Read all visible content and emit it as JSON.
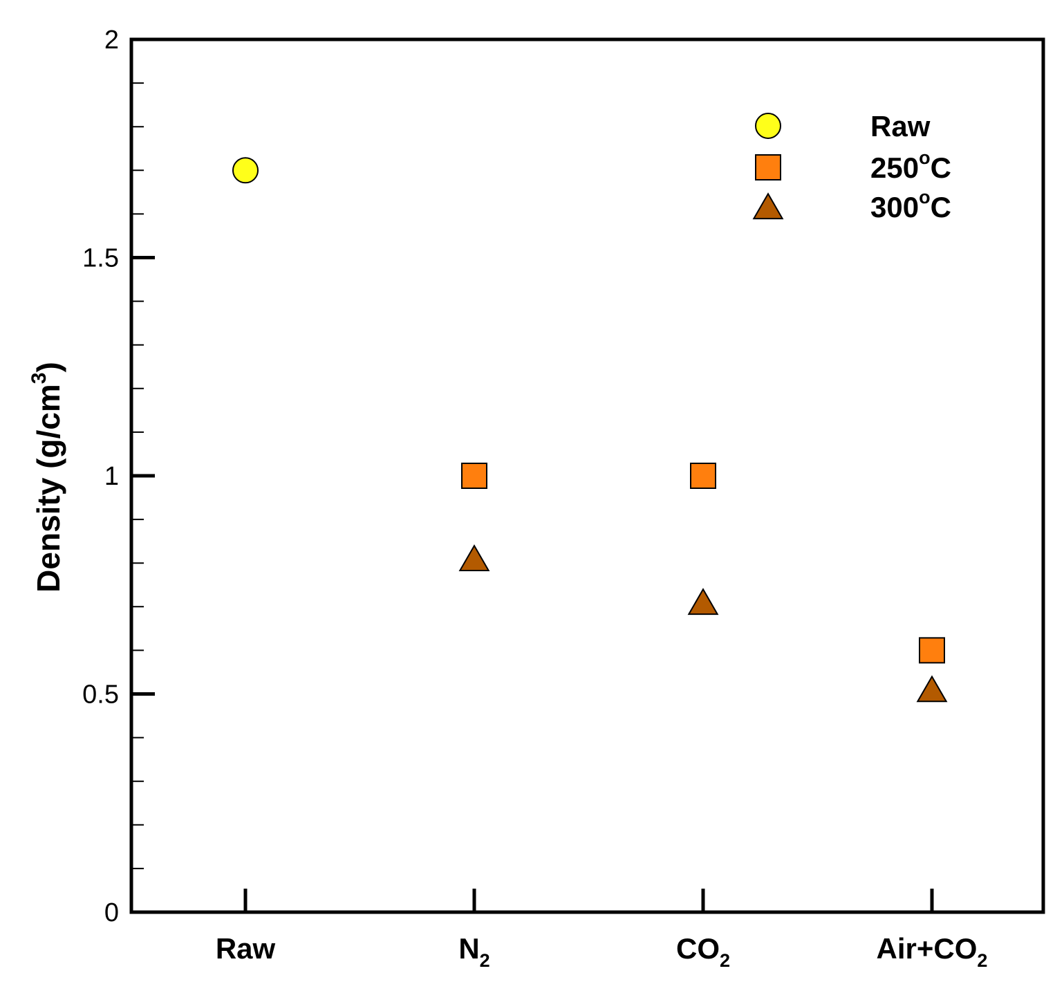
{
  "chart_data": {
    "type": "scatter",
    "title": "",
    "xlabel": "",
    "ylabel": "Density (g/cm³)",
    "ylabel_parts": {
      "main": "Density (g/cm",
      "sup": "3",
      "close": ")"
    },
    "categories": [
      {
        "key": "raw",
        "label": "Raw",
        "sub": ""
      },
      {
        "key": "n2",
        "label": "N",
        "sub": "2"
      },
      {
        "key": "co2",
        "label": "CO",
        "sub": "2"
      },
      {
        "key": "air-co2",
        "label": "Air+CO",
        "sub": "2"
      }
    ],
    "ylim": [
      0,
      2
    ],
    "yticks": [
      {
        "value": 0,
        "label": "0"
      },
      {
        "value": 0.5,
        "label": "0.5"
      },
      {
        "value": 1,
        "label": "1"
      },
      {
        "value": 1.5,
        "label": "1.5"
      },
      {
        "value": 2,
        "label": "2"
      }
    ],
    "minor_step": 0.1,
    "grid": false,
    "legend_position": "top-right",
    "series": [
      {
        "name": "Raw",
        "legend_main": "Raw",
        "legend_sup": "",
        "legend_tail": "",
        "marker": "circle",
        "color": "#ffff1a",
        "points": [
          {
            "category": "Raw",
            "value": 1.7
          }
        ]
      },
      {
        "name": "250°C",
        "legend_main": "250",
        "legend_sup": "o",
        "legend_tail": "C",
        "marker": "square",
        "color": "#ff7f0e",
        "points": [
          {
            "category": "N2",
            "value": 1.0
          },
          {
            "category": "CO2",
            "value": 1.0
          },
          {
            "category": "Air+CO2",
            "value": 0.6
          }
        ]
      },
      {
        "name": "300°C",
        "legend_main": "300",
        "legend_sup": "o",
        "legend_tail": "C",
        "marker": "triangle",
        "color": "#b35a00",
        "points": [
          {
            "category": "N2",
            "value": 0.81
          },
          {
            "category": "CO2",
            "value": 0.71
          },
          {
            "category": "Air+CO2",
            "value": 0.51
          }
        ]
      }
    ]
  }
}
